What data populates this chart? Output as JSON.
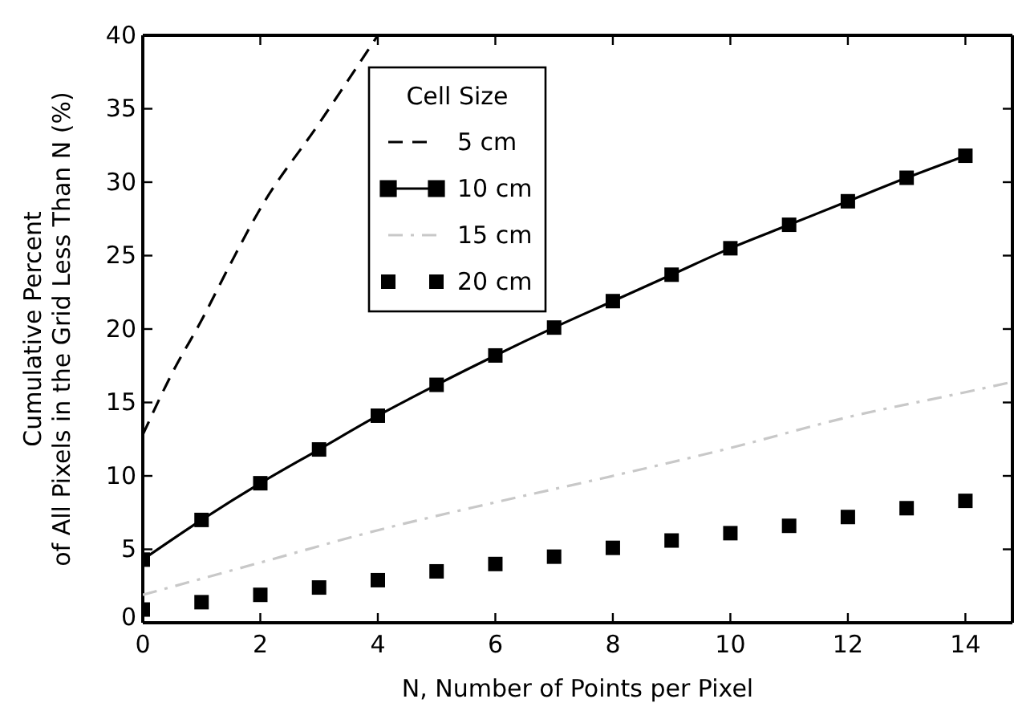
{
  "chart_data": {
    "type": "line",
    "xlabel": "N, Number of Points per Pixel",
    "ylabel": "Cumulative Percent\nof All Pixels in the Grid Less Than N (%)",
    "legend_title": "Cell Size",
    "legend": "top",
    "grid": false,
    "xlim": [
      0,
      14.8
    ],
    "xticks": [
      0,
      2,
      4,
      6,
      8,
      10,
      12,
      14
    ],
    "ylim": [
      0,
      40
    ],
    "yticks": [
      0,
      5,
      10,
      15,
      20,
      25,
      30,
      35,
      40
    ],
    "series": [
      {
        "name": "5 cm",
        "color": "#000000",
        "line_style": "dashed",
        "marker": "none",
        "x": [
          0,
          0.5,
          1,
          1.5,
          2,
          3,
          4
        ],
        "values": [
          12.8,
          17.0,
          20.6,
          24.5,
          28.2,
          34.0,
          40
        ]
      },
      {
        "name": "10 cm",
        "color": "#000000",
        "line_style": "solid",
        "marker": "square",
        "x": [
          0,
          1,
          2,
          3,
          4,
          5,
          6,
          7,
          8,
          9,
          10,
          11,
          12,
          13,
          14
        ],
        "values": [
          4.3,
          7.0,
          9.5,
          11.8,
          14.1,
          16.2,
          18.2,
          20.1,
          21.9,
          23.7,
          25.5,
          27.1,
          28.7,
          30.3,
          31.8
        ]
      },
      {
        "name": "15 cm",
        "color": "#c8c8c8",
        "line_style": "dashdot",
        "marker": "none",
        "x": [
          0,
          2,
          4,
          6,
          8,
          10,
          12,
          14,
          14.8
        ],
        "values": [
          1.9,
          4.1,
          6.3,
          8.2,
          10.0,
          11.9,
          14.0,
          15.7,
          16.4
        ]
      },
      {
        "name": "20 cm",
        "type": "scatter",
        "color": "#000000",
        "marker": "square",
        "x": [
          0,
          1,
          2,
          3,
          4,
          5,
          6,
          7,
          8,
          9,
          10,
          11,
          12,
          13,
          14
        ],
        "values": [
          0.9,
          1.4,
          1.9,
          2.4,
          2.9,
          3.5,
          4.0,
          4.5,
          5.1,
          5.6,
          6.1,
          6.6,
          7.2,
          7.8,
          8.3
        ]
      }
    ]
  }
}
